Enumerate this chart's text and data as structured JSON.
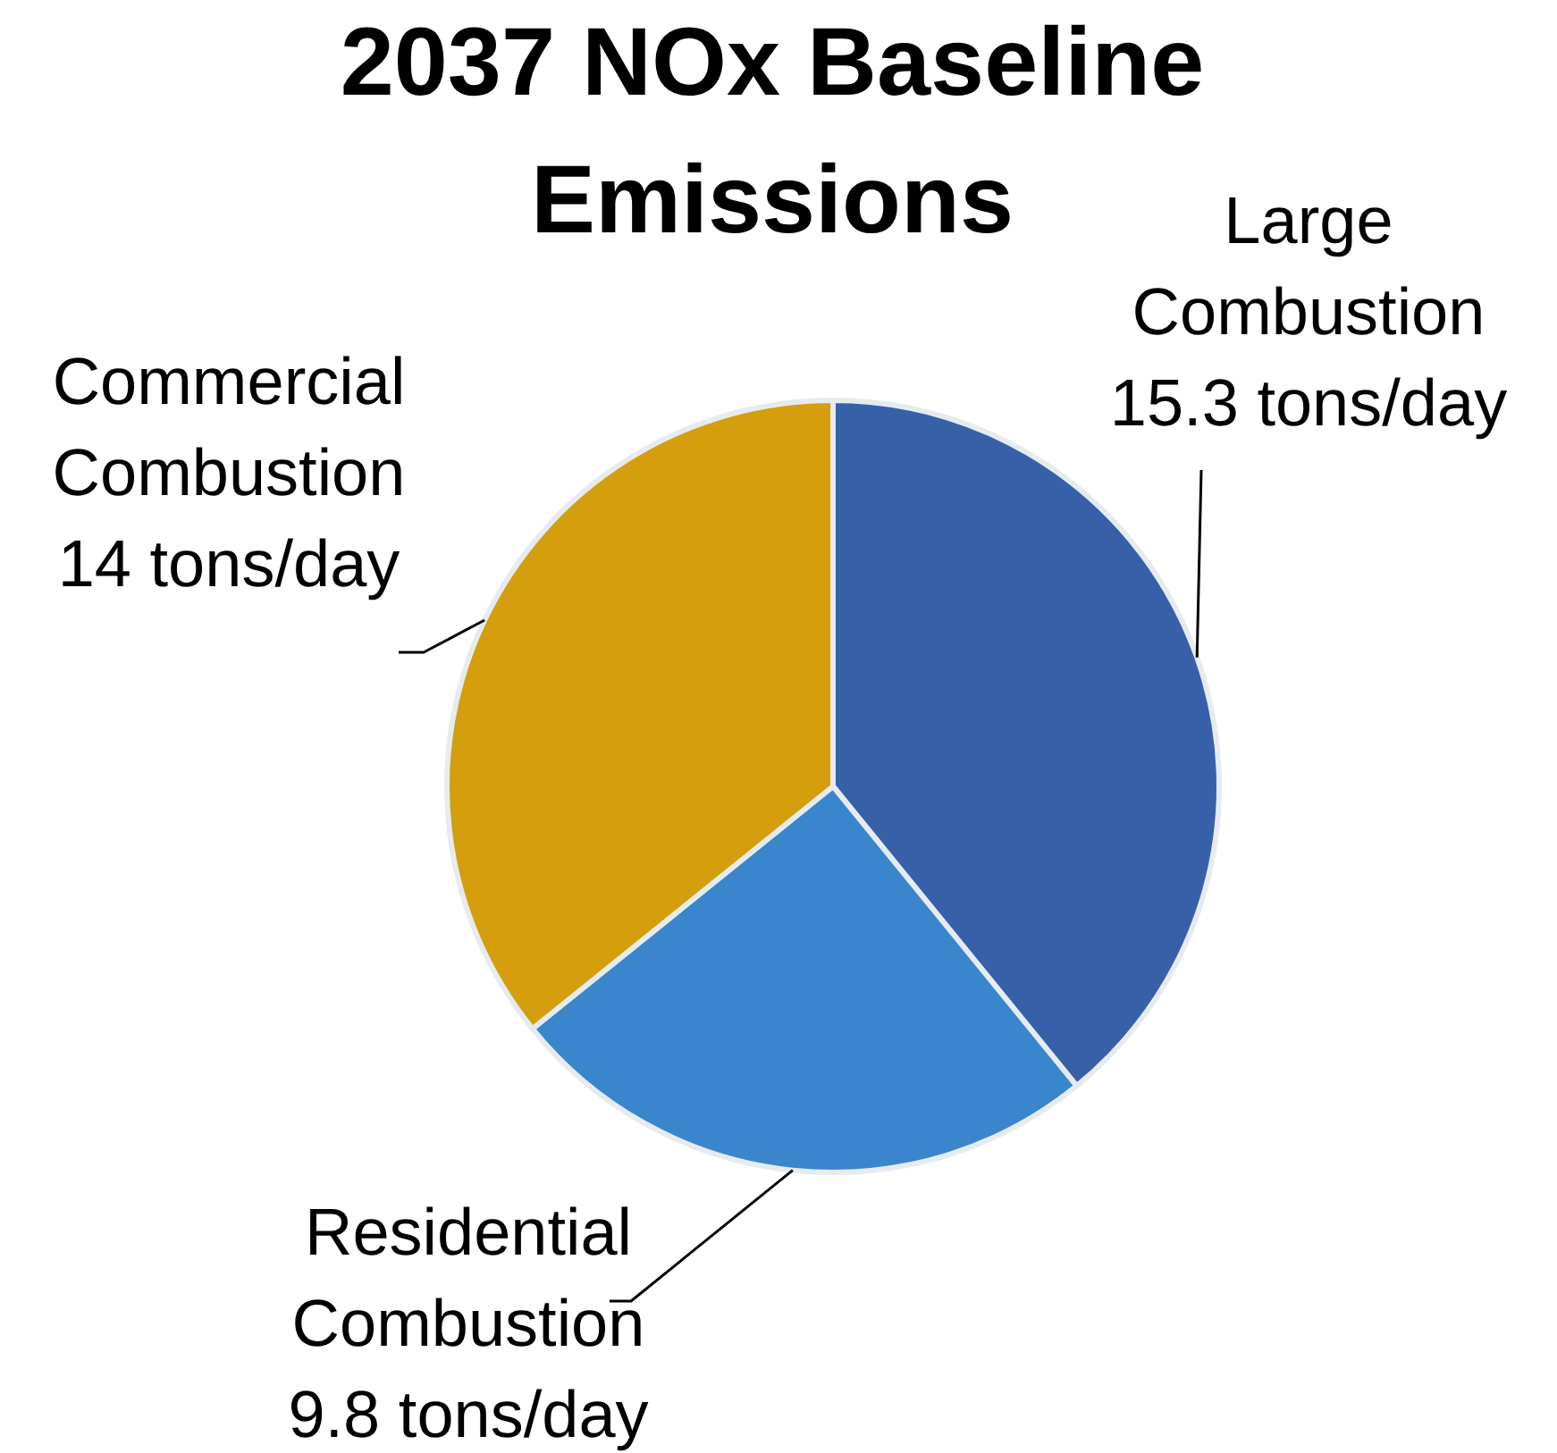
{
  "chart_data": {
    "type": "pie",
    "title": "2037 NOx Baseline Emissions",
    "categories": [
      "Large Combustion",
      "Residential Combustion",
      "Commercial Combustion"
    ],
    "values": [
      15.3,
      9.8,
      14
    ],
    "colors": [
      "#3760a9",
      "#3a86cc",
      "#d49e0c"
    ],
    "value_labels": [
      "15.3 tons/day",
      "9.8 tons/day",
      "14 tons/day"
    ]
  }
}
